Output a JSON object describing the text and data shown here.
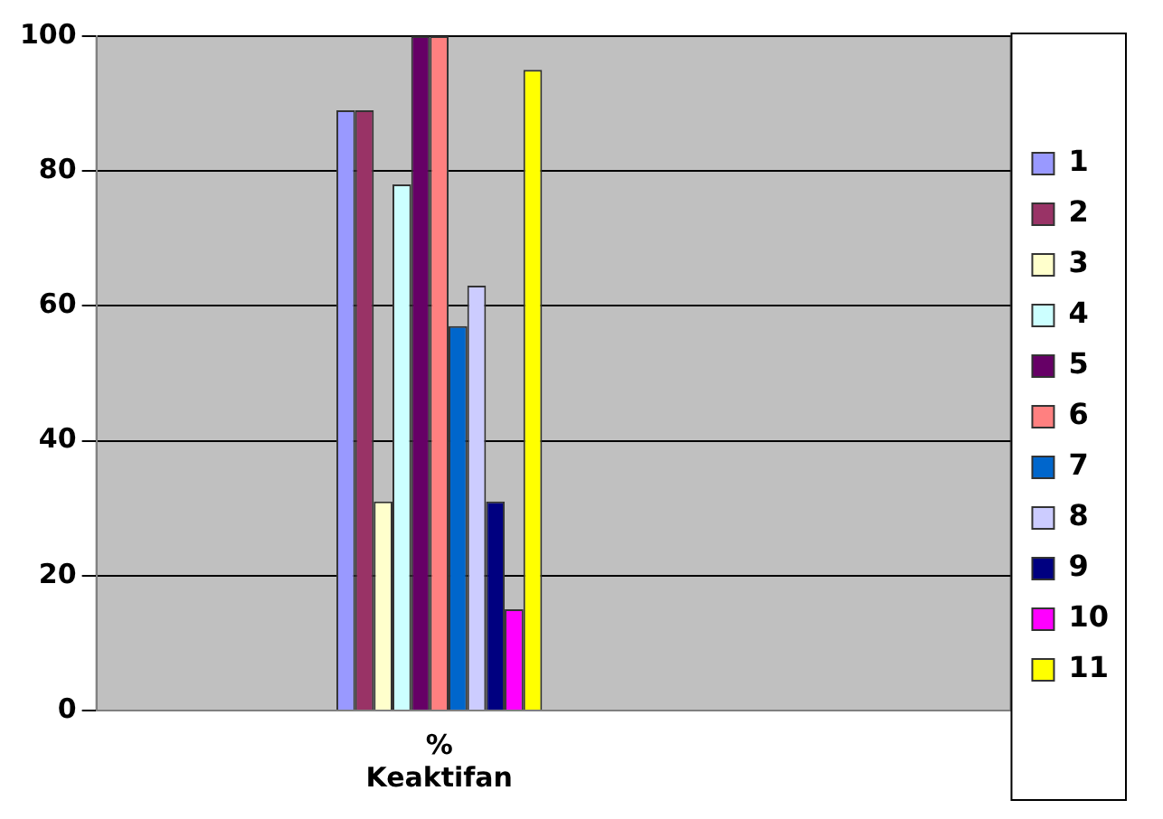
{
  "chart_data": {
    "type": "bar",
    "xlabel": null,
    "categories": [
      null,
      "% Keaktifan",
      null,
      null
    ],
    "series": [
      {
        "name": "1",
        "color": "#9999ff",
        "values": [
          null,
          89,
          null,
          null
        ]
      },
      {
        "name": "2",
        "color": "#993366",
        "values": [
          null,
          89,
          null,
          null
        ]
      },
      {
        "name": "3",
        "color": "#ffffcc",
        "values": [
          null,
          31,
          null,
          null
        ]
      },
      {
        "name": "4",
        "color": "#ccffff",
        "values": [
          null,
          78,
          null,
          null
        ]
      },
      {
        "name": "5",
        "color": "#660066",
        "values": [
          null,
          100,
          null,
          null
        ]
      },
      {
        "name": "6",
        "color": "#ff8080",
        "values": [
          null,
          100,
          null,
          null
        ]
      },
      {
        "name": "7",
        "color": "#0066cc",
        "values": [
          null,
          57,
          null,
          null
        ]
      },
      {
        "name": "8",
        "color": "#ccccff",
        "values": [
          null,
          63,
          null,
          null
        ]
      },
      {
        "name": "9",
        "color": "#000080",
        "values": [
          null,
          31,
          null,
          null
        ]
      },
      {
        "name": "10",
        "color": "#ff00ff",
        "values": [
          null,
          15,
          null,
          null
        ]
      },
      {
        "name": "11",
        "color": "#ffff00",
        "values": [
          null,
          95,
          null,
          null
        ]
      }
    ],
    "ylim": [
      0,
      100
    ],
    "yticks": [
      0,
      20,
      40,
      60,
      80,
      100
    ],
    "grid": "y",
    "legend": "right"
  }
}
